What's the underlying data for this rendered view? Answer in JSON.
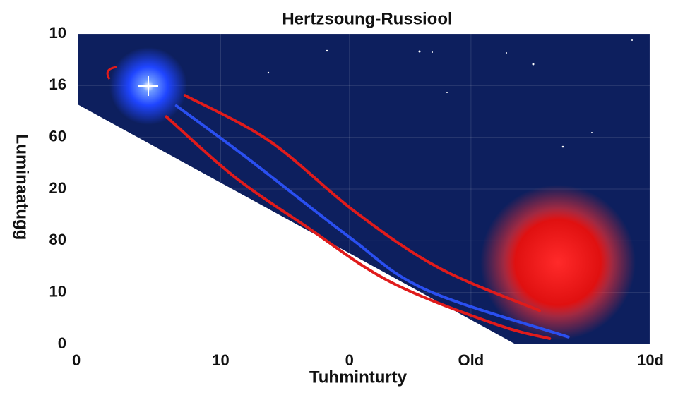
{
  "chart_data": {
    "type": "line",
    "title": "Hertzsoung-Russiool",
    "xlabel": "Tuhminturty",
    "ylabel": "Luminaatugg",
    "xlim": [
      0,
      4
    ],
    "xticks": [
      {
        "value": 0,
        "label": "0"
      },
      {
        "value": 1,
        "label": "10"
      },
      {
        "value": 1.9,
        "label": "0"
      },
      {
        "value": 2.75,
        "label": "Old"
      },
      {
        "value": 4,
        "label": "10d"
      }
    ],
    "ylim": [
      0,
      6
    ],
    "yticks": [
      {
        "value": 0,
        "label": "0"
      },
      {
        "value": 1,
        "label": "10"
      },
      {
        "value": 2,
        "label": "80"
      },
      {
        "value": 3,
        "label": "20"
      },
      {
        "value": 4,
        "label": "60"
      },
      {
        "value": 5,
        "label": "16"
      },
      {
        "value": 6,
        "label": "10"
      }
    ],
    "grid": true,
    "series": [
      {
        "color": "#e01b1b",
        "x": [
          0.75,
          1.34,
          1.94,
          2.53,
          3.23
        ],
        "values": [
          4.81,
          3.93,
          2.56,
          1.47,
          0.65
        ]
      },
      {
        "color": "#2a4ff0",
        "x": [
          0.69,
          1.19,
          1.89,
          2.43,
          3.43
        ],
        "values": [
          4.61,
          3.59,
          2.09,
          1.06,
          0.14
        ]
      },
      {
        "color": "#e01b1b",
        "x": [
          0.62,
          1.09,
          1.59,
          2.19,
          2.93,
          3.3
        ],
        "values": [
          4.4,
          3.25,
          2.29,
          1.2,
          0.38,
          0.11
        ]
      }
    ]
  }
}
